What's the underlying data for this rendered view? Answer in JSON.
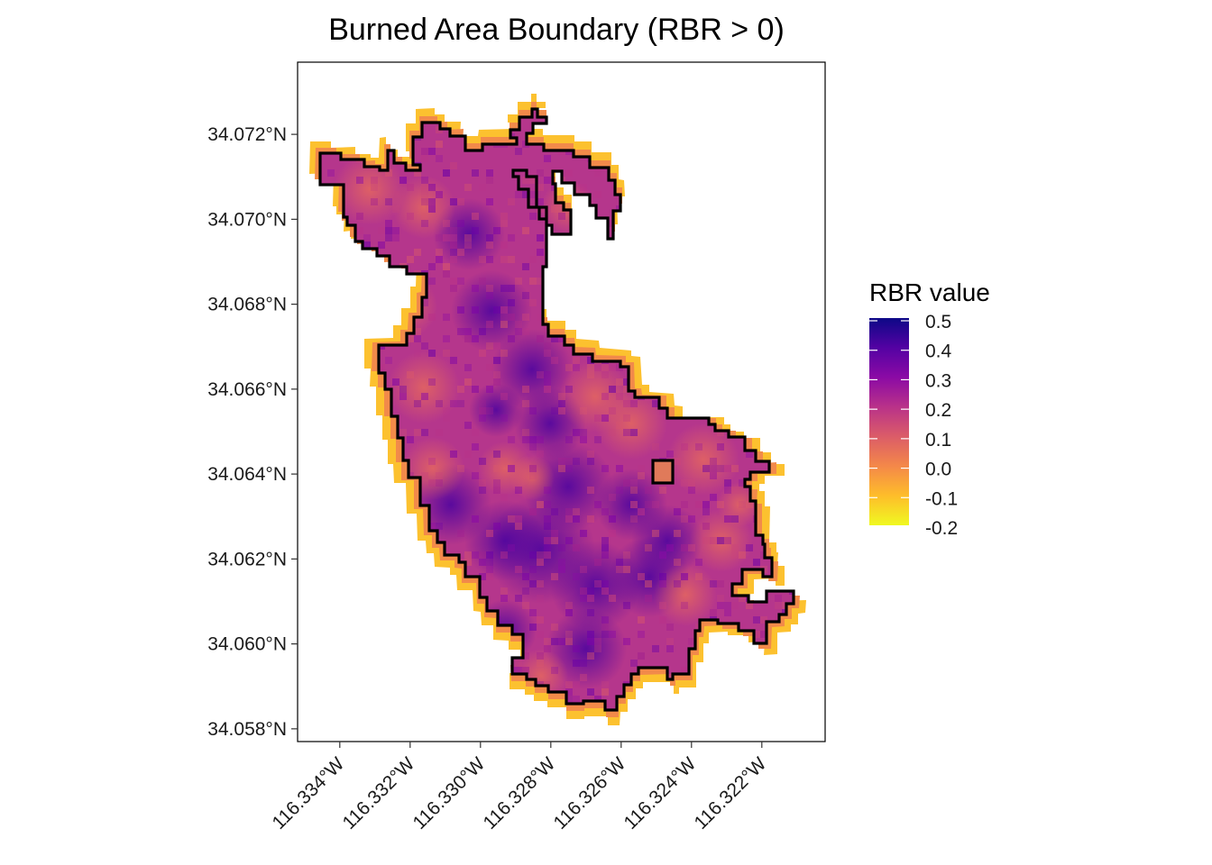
{
  "title": "Burned Area Boundary (RBR > 0)",
  "map": {
    "x_ticks": [
      "116.334°W",
      "116.332°W",
      "116.330°W",
      "116.328°W",
      "116.326°W",
      "116.324°W",
      "116.322°W"
    ],
    "y_ticks": [
      "34.072°N",
      "34.070°N",
      "34.068°N",
      "34.066°N",
      "34.064°N",
      "34.062°N",
      "34.060°N",
      "34.058°N"
    ],
    "x_tick_values": [
      -116.334,
      -116.332,
      -116.33,
      -116.328,
      -116.326,
      -116.324,
      -116.322
    ],
    "y_tick_values": [
      34.072,
      34.07,
      34.068,
      34.066,
      34.064,
      34.062,
      34.06,
      34.058
    ],
    "xlim": [
      -116.3352,
      -116.3202
    ],
    "ylim": [
      34.0577,
      34.0737
    ],
    "boundary_color": "#000000"
  },
  "legend": {
    "title": "RBR value",
    "labels": [
      "0.5",
      "0.4",
      "0.3",
      "0.2",
      "0.1",
      "0.0",
      "-0.1",
      "-0.2"
    ],
    "values": [
      0.5,
      0.4,
      0.3,
      0.2,
      0.1,
      0.0,
      -0.1,
      -0.2
    ],
    "palette": "plasma",
    "colors": [
      "#0d0887",
      "#5402a3",
      "#8b0aa5",
      "#b93289",
      "#db5c68",
      "#f48849",
      "#febd2a",
      "#f0f921"
    ]
  }
}
